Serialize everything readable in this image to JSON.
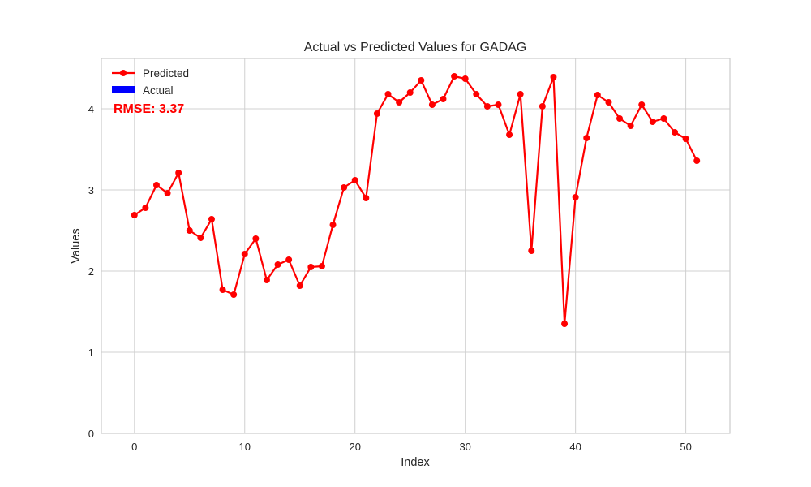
{
  "chart_data": {
    "type": "line",
    "title": "Actual vs Predicted Values for GADAG",
    "xlabel": "Index",
    "ylabel": "Values",
    "xlim": [
      -3,
      54
    ],
    "ylim": [
      0,
      4.62
    ],
    "xticks": [
      0,
      10,
      20,
      30,
      40,
      50
    ],
    "yticks": [
      0,
      1,
      2,
      3,
      4
    ],
    "grid": true,
    "legend_position": "top-left",
    "annotation": "RMSE: 3.37",
    "colors": {
      "predicted": "#ff0000",
      "actual": "#0000ff",
      "annotation": "#ff0000",
      "grid": "#d0d0d0",
      "frame": "#cccccc"
    },
    "series": [
      {
        "name": "Predicted",
        "style": "line-marker",
        "x": [
          0,
          1,
          2,
          3,
          4,
          5,
          6,
          7,
          8,
          9,
          10,
          11,
          12,
          13,
          14,
          15,
          16,
          17,
          18,
          19,
          20,
          21,
          22,
          23,
          24,
          25,
          26,
          27,
          28,
          29,
          30,
          31,
          32,
          33,
          34,
          35,
          36,
          37,
          38,
          39,
          40,
          41,
          42,
          43,
          44,
          45,
          46,
          47,
          48,
          49,
          50,
          51
        ],
        "values": [
          2.69,
          2.78,
          3.06,
          2.96,
          3.21,
          2.5,
          2.41,
          2.64,
          1.77,
          1.71,
          2.21,
          2.4,
          1.89,
          2.08,
          2.14,
          1.82,
          2.05,
          2.06,
          2.57,
          3.03,
          3.12,
          2.9,
          3.94,
          4.18,
          4.08,
          4.2,
          4.35,
          4.05,
          4.12,
          4.4,
          4.37,
          4.18,
          4.03,
          4.05,
          3.68,
          4.18,
          2.25,
          4.03,
          4.39,
          1.35,
          2.91,
          3.64,
          4.17,
          4.08,
          3.88,
          3.79,
          4.05,
          3.84,
          3.88,
          3.71,
          3.63,
          3.36
        ]
      },
      {
        "name": "Actual",
        "style": "bar",
        "x": [],
        "values": []
      }
    ]
  }
}
